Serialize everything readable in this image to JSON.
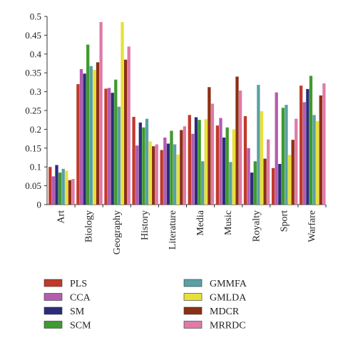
{
  "chart_data": {
    "type": "bar",
    "categories": [
      "Art",
      "Biology",
      "Geography",
      "History",
      "Literature",
      "Media",
      "Music",
      "Royalty",
      "Sport",
      "Warfare"
    ],
    "ylim": [
      0,
      0.5
    ],
    "yticks": [
      "0",
      "0.05",
      "0.1",
      "0.15",
      "0.2",
      "0.25",
      "0.3",
      "0.35",
      "0.4",
      "0.45",
      "0.5"
    ],
    "grid": false,
    "legend_position": "bottom",
    "series": [
      {
        "name": "PLS",
        "color": "#c0392b",
        "values": [
          0.1,
          0.32,
          0.308,
          0.233,
          0.145,
          0.238,
          0.21,
          0.235,
          0.097,
          0.316
        ]
      },
      {
        "name": "CCA",
        "color": "#b45cb0",
        "values": [
          0.075,
          0.36,
          0.31,
          0.157,
          0.178,
          0.188,
          0.23,
          0.15,
          0.298,
          0.272
        ]
      },
      {
        "name": "SM",
        "color": "#2b2d7a",
        "values": [
          0.105,
          0.348,
          0.297,
          0.218,
          0.162,
          0.232,
          0.178,
          0.085,
          0.108,
          0.307
        ]
      },
      {
        "name": "SCM",
        "color": "#3f9a2f",
        "values": [
          0.085,
          0.425,
          0.332,
          0.205,
          0.196,
          0.225,
          0.205,
          0.115,
          0.257,
          0.342
        ]
      },
      {
        "name": "GMMFA",
        "color": "#5aa0a6",
        "values": [
          0.095,
          0.368,
          0.26,
          0.228,
          0.16,
          0.115,
          0.113,
          0.318,
          0.265,
          0.238
        ]
      },
      {
        "name": "GMLDA",
        "color": "#e8e03a",
        "values": [
          0.09,
          0.358,
          0.485,
          0.168,
          0.133,
          0.227,
          0.2,
          0.248,
          0.132,
          0.222
        ]
      },
      {
        "name": "MDCR",
        "color": "#8b2f14",
        "values": [
          0.065,
          0.378,
          0.385,
          0.155,
          0.198,
          0.312,
          0.34,
          0.122,
          0.172,
          0.29
        ]
      },
      {
        "name": "MRRDC",
        "color": "#e07aa8",
        "values": [
          0.068,
          0.485,
          0.42,
          0.16,
          0.208,
          0.268,
          0.303,
          0.173,
          0.228,
          0.322
        ]
      }
    ]
  }
}
